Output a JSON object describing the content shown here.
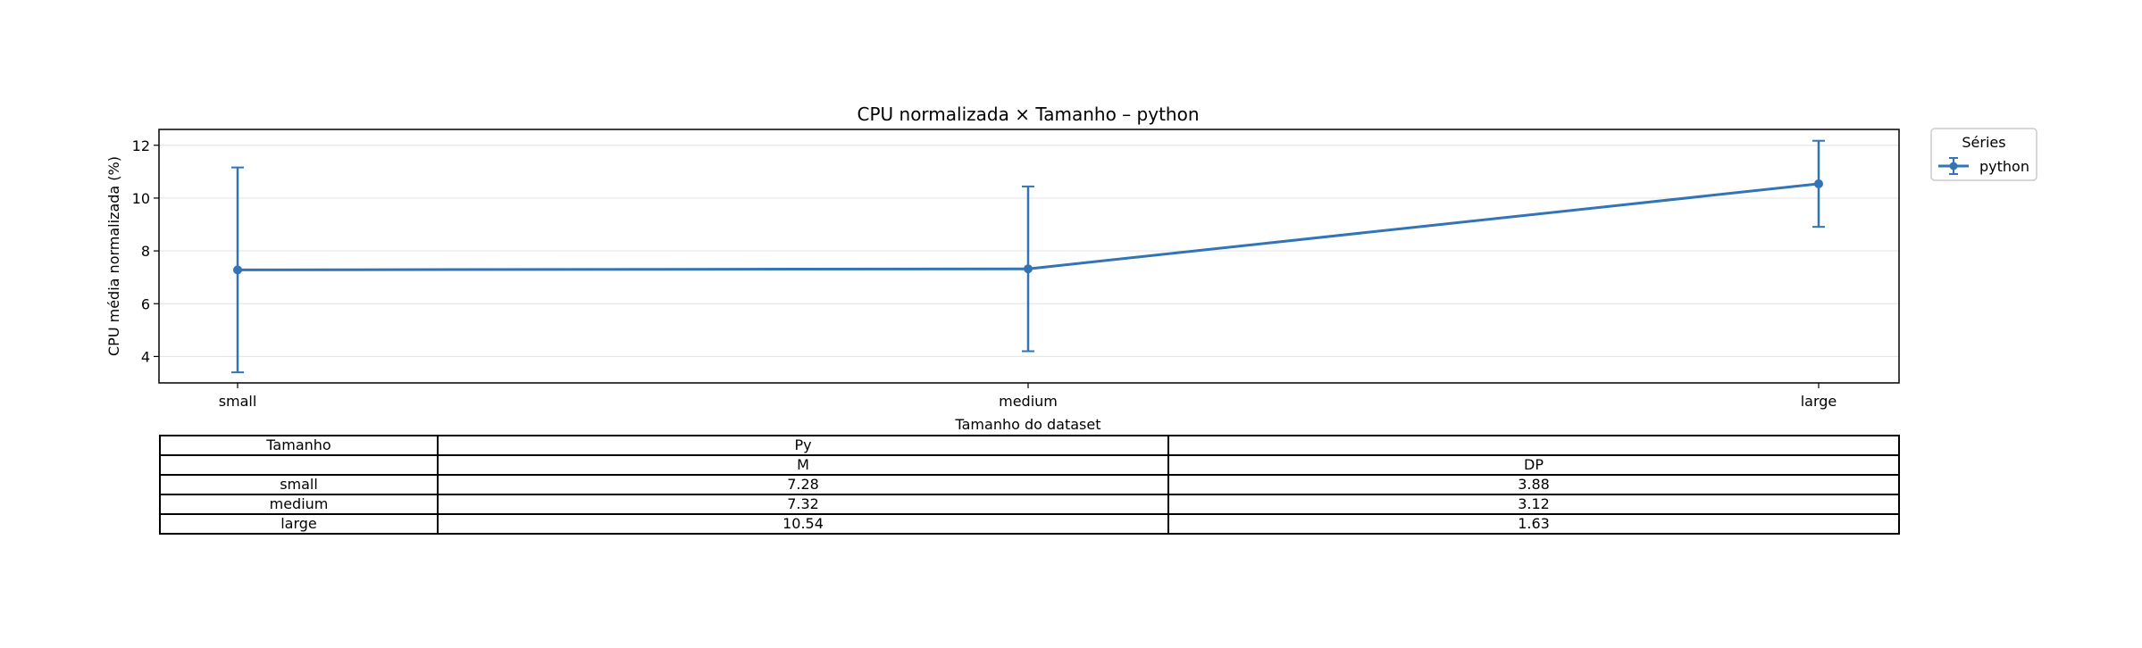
{
  "chart_data": {
    "type": "line",
    "title": "CPU normalizada × Tamanho – python",
    "xlabel": "Tamanho do dataset",
    "ylabel": "CPU média normalizada (%)",
    "categories": [
      "small",
      "medium",
      "large"
    ],
    "ylim": [
      3,
      12.6
    ],
    "yticks": [
      4,
      6,
      8,
      10,
      12
    ],
    "grid": true,
    "legend": {
      "title": "Séries",
      "placement": "outside-top-right"
    },
    "series": [
      {
        "name": "python",
        "color": "#3274b5",
        "values": [
          7.28,
          7.32,
          10.54
        ],
        "error": [
          3.88,
          3.12,
          1.63
        ]
      }
    ]
  },
  "table": {
    "header1": [
      "Tamanho",
      "Py",
      ""
    ],
    "header2": [
      "",
      "M",
      "DP"
    ],
    "rows": [
      [
        "small",
        "7.28",
        "3.88"
      ],
      [
        "medium",
        "7.32",
        "3.12"
      ],
      [
        "large",
        "10.54",
        "1.63"
      ]
    ]
  }
}
